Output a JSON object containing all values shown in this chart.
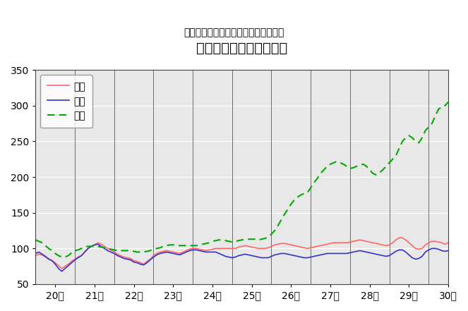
{
  "title": "鳥取県鉱工業指数の推移",
  "subtitle": "（季節調整済、平成２２年＝１００）",
  "ylim": [
    50,
    350
  ],
  "yticks": [
    50,
    100,
    150,
    200,
    250,
    300,
    350
  ],
  "x_labels": [
    "20年",
    "21年",
    "22年",
    "23年",
    "24年",
    "25年",
    "26年",
    "27年",
    "28年",
    "29年",
    "30年"
  ],
  "fig_bg_color": "#ffffff",
  "plot_bg_color": "#e8e8e8",
  "legend_labels": [
    "生産",
    "出荷",
    "在庫"
  ],
  "line_colors": [
    "#ff6666",
    "#3333cc",
    "#00aa00"
  ],
  "line_styles": [
    "-",
    "-",
    "--"
  ],
  "production": [
    90,
    92,
    91,
    88,
    86,
    83,
    80,
    76,
    72,
    75,
    78,
    82,
    85,
    88,
    90,
    95,
    100,
    103,
    105,
    108,
    106,
    103,
    100,
    98,
    95,
    92,
    90,
    88,
    87,
    86,
    83,
    82,
    80,
    78,
    82,
    85,
    90,
    93,
    95,
    96,
    97,
    96,
    95,
    94,
    93,
    95,
    97,
    99,
    100,
    100,
    99,
    98,
    97,
    98,
    99,
    100,
    100,
    100,
    100,
    100,
    100,
    100,
    102,
    103,
    104,
    103,
    102,
    101,
    100,
    100,
    100,
    101,
    103,
    105,
    106,
    107,
    107,
    106,
    105,
    104,
    103,
    102,
    101,
    100,
    101,
    102,
    103,
    104,
    105,
    106,
    107,
    108,
    108,
    108,
    108,
    108,
    109,
    110,
    111,
    112,
    111,
    110,
    109,
    108,
    107,
    106,
    105,
    104,
    105,
    108,
    112,
    115,
    115,
    112,
    108,
    104,
    100,
    99,
    100,
    105,
    108,
    110,
    110,
    109,
    108,
    106,
    108
  ],
  "shipment": [
    93,
    95,
    92,
    89,
    85,
    83,
    78,
    72,
    68,
    72,
    76,
    80,
    84,
    87,
    90,
    95,
    100,
    103,
    105,
    106,
    103,
    100,
    97,
    95,
    93,
    90,
    88,
    86,
    85,
    84,
    81,
    80,
    78,
    77,
    80,
    84,
    88,
    91,
    93,
    94,
    95,
    94,
    93,
    92,
    91,
    93,
    95,
    97,
    98,
    98,
    97,
    96,
    95,
    95,
    95,
    95,
    93,
    91,
    89,
    88,
    87,
    88,
    90,
    91,
    92,
    91,
    90,
    89,
    88,
    87,
    87,
    87,
    89,
    91,
    92,
    93,
    93,
    92,
    91,
    90,
    89,
    88,
    87,
    87,
    88,
    89,
    90,
    91,
    92,
    93,
    93,
    93,
    93,
    93,
    93,
    93,
    94,
    95,
    96,
    97,
    96,
    95,
    94,
    93,
    92,
    91,
    90,
    89,
    90,
    93,
    96,
    98,
    98,
    95,
    91,
    87,
    85,
    86,
    89,
    95,
    98,
    100,
    100,
    99,
    97,
    96,
    97
  ],
  "inventory": [
    112,
    110,
    108,
    104,
    100,
    97,
    93,
    90,
    88,
    88,
    90,
    94,
    97,
    98,
    100,
    102,
    103,
    103,
    103,
    103,
    102,
    101,
    100,
    99,
    98,
    97,
    97,
    97,
    97,
    97,
    96,
    95,
    95,
    95,
    96,
    97,
    99,
    100,
    101,
    103,
    104,
    105,
    105,
    105,
    104,
    104,
    104,
    104,
    104,
    104,
    105,
    106,
    107,
    108,
    110,
    111,
    112,
    112,
    111,
    110,
    109,
    110,
    111,
    112,
    113,
    113,
    113,
    113,
    112,
    113,
    114,
    116,
    120,
    125,
    132,
    140,
    148,
    155,
    162,
    168,
    172,
    175,
    177,
    178,
    185,
    192,
    198,
    205,
    210,
    215,
    218,
    220,
    222,
    220,
    218,
    215,
    212,
    213,
    215,
    217,
    218,
    215,
    210,
    205,
    203,
    206,
    210,
    215,
    220,
    225,
    230,
    240,
    250,
    255,
    258,
    255,
    250,
    248,
    255,
    265,
    270,
    275,
    285,
    295,
    298,
    300,
    305
  ]
}
